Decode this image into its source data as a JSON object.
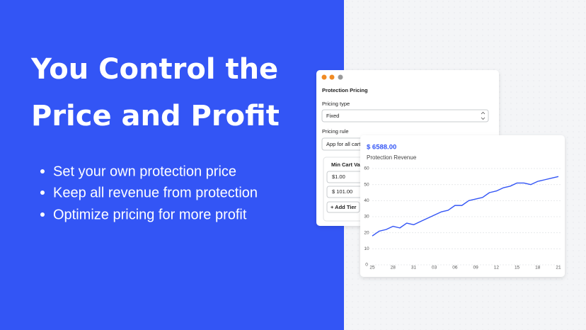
{
  "headline": [
    "You Control the",
    "Price and Profit"
  ],
  "bullets": [
    "Set your own protection price",
    "Keep all revenue from protection",
    "Optimize pricing for more profit"
  ],
  "settings_panel": {
    "title": "Protection Pricing",
    "pricing_type_label": "Pricing type",
    "pricing_type_value": "Fixed",
    "pricing_rule_label": "Pricing rule",
    "pricing_rule_value": "App for all carts",
    "tier_header": "Min Cart Value",
    "tiers": [
      "$1.00",
      "$ 101.00"
    ],
    "add_button": "+ Add Tier"
  },
  "revenue_card": {
    "amount": "$ 6588.00"
  },
  "chart_data": {
    "type": "line",
    "title": "Protection Revenue",
    "categories": [
      "25",
      null,
      null,
      "28",
      null,
      null,
      "31",
      null,
      null,
      "03",
      null,
      null,
      "06",
      null,
      null,
      "09",
      null,
      null,
      "12",
      null,
      null,
      "15",
      null,
      null,
      "18",
      null,
      null,
      "21"
    ],
    "values": [
      18,
      21,
      22,
      24,
      23,
      26,
      25,
      27,
      29,
      31,
      33,
      34,
      37,
      37,
      40,
      41,
      42,
      45,
      46,
      48,
      49,
      51,
      51,
      50,
      52,
      53,
      54,
      55
    ],
    "color": "#3355f5",
    "ylim": [
      0,
      60
    ],
    "yticks": [
      0,
      10,
      20,
      30,
      40,
      50,
      60
    ],
    "grid": true
  }
}
